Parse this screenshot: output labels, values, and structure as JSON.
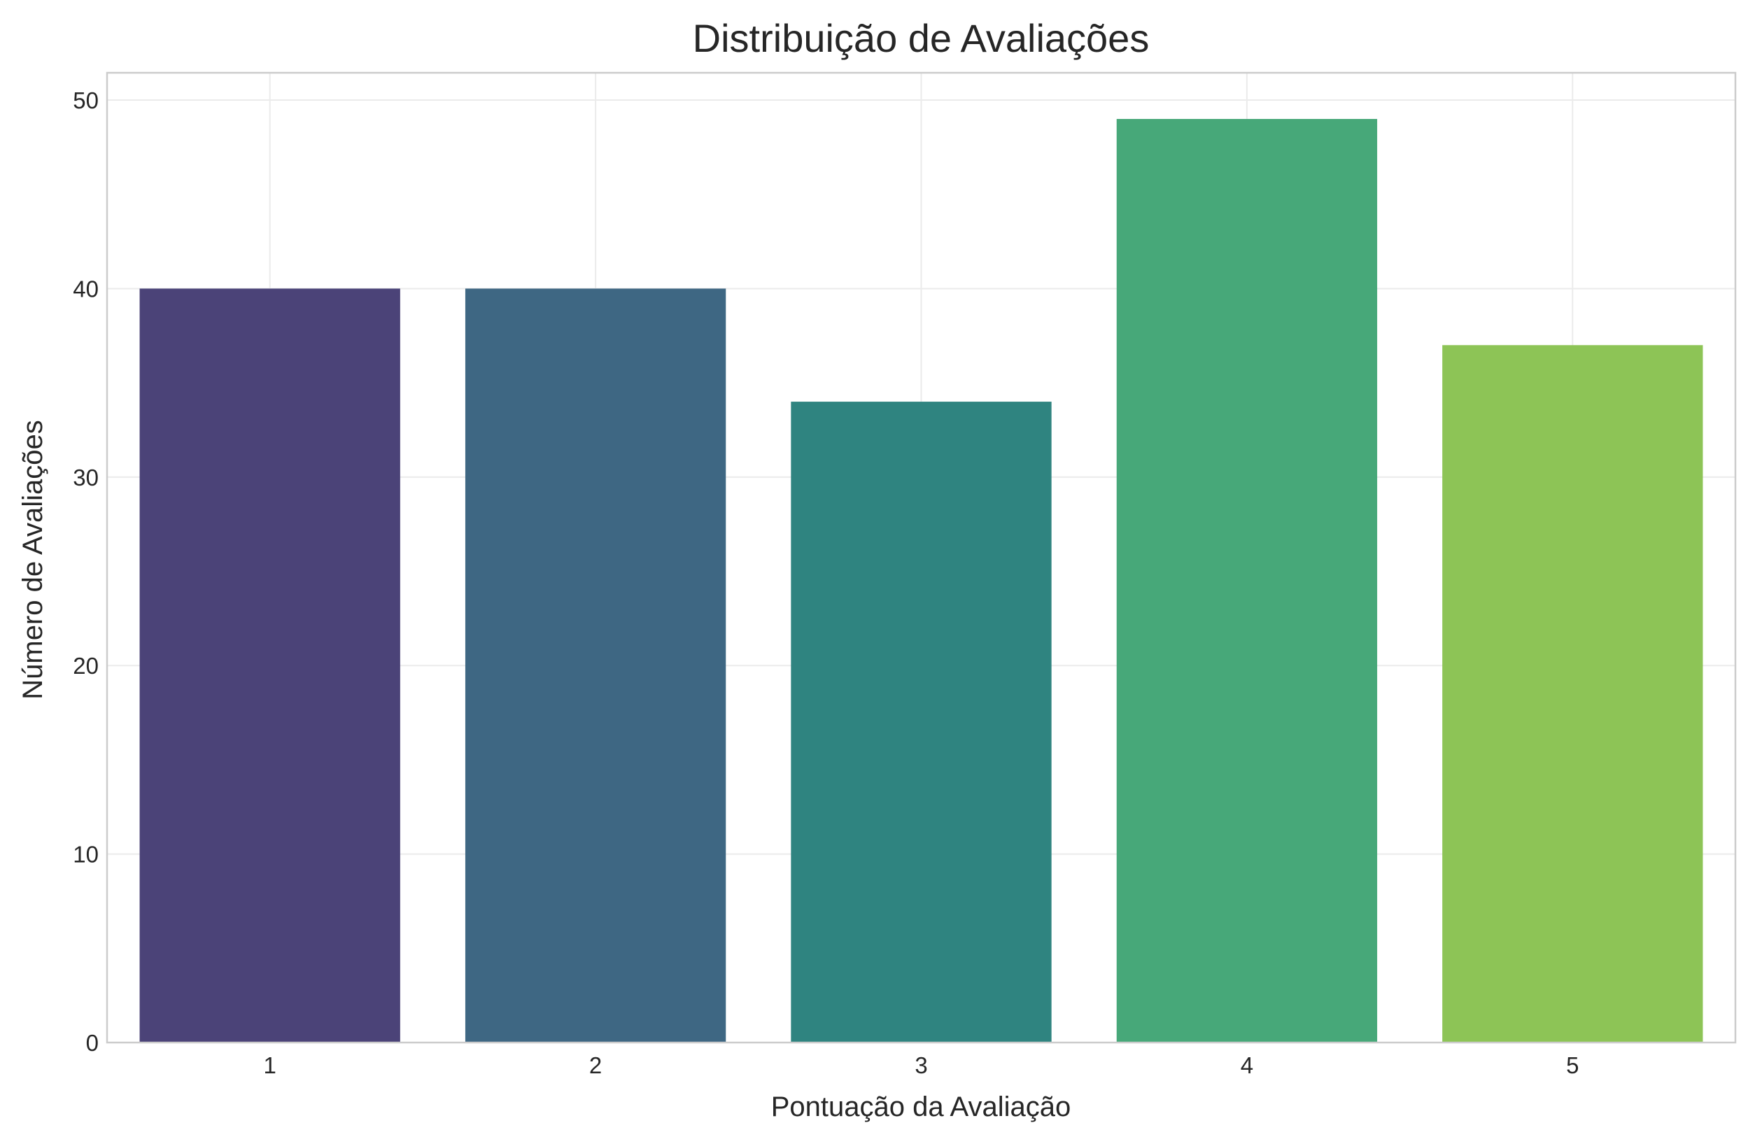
{
  "chart_data": {
    "type": "bar",
    "title": "Distribuição de Avaliações",
    "xlabel": "Pontuação da Avaliação",
    "ylabel": "Número de Avaliações",
    "categories": [
      "1",
      "2",
      "3",
      "4",
      "5"
    ],
    "values": [
      40,
      40,
      34,
      49,
      37
    ],
    "colors": [
      "#4b4378",
      "#3e6783",
      "#2f8480",
      "#47a879",
      "#8dc456"
    ],
    "ylim": [
      0,
      51.45
    ],
    "yticks": [
      0,
      10,
      20,
      30,
      40,
      50
    ],
    "grid": true,
    "legend": "none"
  }
}
